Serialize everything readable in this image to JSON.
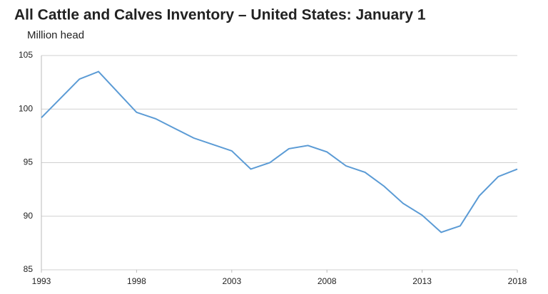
{
  "chart_data": {
    "type": "line",
    "title": "All Cattle and Calves Inventory – United States: January 1",
    "y_label": "Million head",
    "x": [
      1993,
      1994,
      1995,
      1996,
      1997,
      1998,
      1999,
      2000,
      2001,
      2002,
      2003,
      2004,
      2005,
      2006,
      2007,
      2008,
      2009,
      2010,
      2011,
      2012,
      2013,
      2014,
      2015,
      2016,
      2017,
      2018
    ],
    "series": [
      {
        "name": "All cattle and calves",
        "color": "#5b9bd5",
        "values": [
          99.2,
          101.0,
          102.8,
          103.5,
          101.6,
          99.7,
          99.1,
          98.2,
          97.3,
          96.7,
          96.1,
          94.4,
          95.0,
          96.3,
          96.6,
          96.0,
          94.7,
          94.1,
          92.8,
          91.2,
          90.1,
          88.5,
          89.1,
          91.9,
          93.7,
          94.4
        ]
      }
    ],
    "xlim": [
      1993,
      2018
    ],
    "xticks": [
      1993,
      1998,
      2003,
      2008,
      2013,
      2018
    ],
    "ylim": [
      85,
      105
    ],
    "yticks": [
      85,
      90,
      95,
      100,
      105
    ],
    "grid": true
  }
}
